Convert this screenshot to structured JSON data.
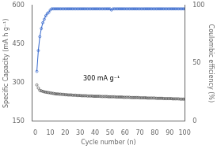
{
  "chart_data": {
    "type": "scatter",
    "xlabel": "Cycle number (n)",
    "ylabel": "Specific Capacity (mA h g⁻¹)",
    "y2label": "Coulombic efficiency (%)",
    "xlim": [
      -2,
      100
    ],
    "xticks": [
      0,
      10,
      20,
      30,
      40,
      50,
      60,
      70,
      80,
      90,
      100
    ],
    "ylim": [
      150,
      600
    ],
    "yticks": [
      150,
      300,
      450,
      600
    ],
    "y2lim": [
      0,
      100
    ],
    "y2ticks": [
      0,
      50,
      100
    ],
    "grid": false,
    "x": [
      1,
      2,
      3,
      4,
      5,
      6,
      7,
      8,
      9,
      10,
      11,
      12,
      13,
      14,
      15,
      16,
      17,
      18,
      19,
      20,
      21,
      22,
      23,
      24,
      25,
      26,
      27,
      28,
      29,
      30,
      31,
      32,
      33,
      34,
      35,
      36,
      37,
      38,
      39,
      40,
      41,
      42,
      43,
      44,
      45,
      46,
      47,
      48,
      49,
      50,
      51,
      52,
      53,
      54,
      55,
      56,
      57,
      58,
      59,
      60,
      61,
      62,
      63,
      64,
      65,
      66,
      67,
      68,
      69,
      70,
      71,
      72,
      73,
      74,
      75,
      76,
      77,
      78,
      79,
      80,
      81,
      82,
      83,
      84,
      85,
      86,
      87,
      88,
      89,
      90,
      91,
      92,
      93,
      94,
      95,
      96,
      97,
      98,
      99,
      100
    ],
    "series": [
      {
        "type": "scatter",
        "color": "#404040",
        "marker": "circle",
        "values": [
          291,
          279,
          270,
          268,
          266,
          264,
          263,
          262,
          261,
          260,
          259,
          258,
          257,
          256,
          256,
          255,
          255,
          254,
          254,
          253,
          253,
          252,
          252,
          252,
          251,
          251,
          251,
          250,
          250,
          250,
          249,
          249,
          249,
          249,
          248,
          248,
          248,
          248,
          247,
          247,
          247,
          247,
          247,
          246,
          246,
          246,
          246,
          246,
          245,
          245,
          245,
          245,
          245,
          244,
          244,
          244,
          244,
          244,
          243,
          243,
          243,
          243,
          243,
          242,
          242,
          242,
          242,
          242,
          242,
          241,
          241,
          241,
          241,
          241,
          240,
          240,
          240,
          240,
          240,
          240,
          239,
          239,
          239,
          239,
          239,
          238,
          238,
          238,
          238,
          238,
          238,
          237,
          237,
          237,
          237,
          237,
          236,
          236,
          236,
          236
        ]
      },
      {
        "type": "line",
        "axis": "y2",
        "color": "#3366cc",
        "marker": "circle",
        "line_style": "solid",
        "values": [
          43,
          61,
          73,
          80,
          85,
          88,
          91,
          93,
          94,
          96,
          97,
          97,
          97,
          97,
          97,
          97,
          97,
          97,
          97,
          97,
          97,
          97,
          97,
          97,
          97,
          97,
          97,
          97,
          97,
          97,
          97,
          97,
          97,
          97,
          97,
          97,
          97,
          97,
          97,
          97,
          97,
          97,
          97,
          97,
          97,
          97,
          97,
          97,
          97,
          97,
          96,
          97,
          97,
          97,
          97,
          97,
          97,
          97,
          97,
          97,
          97,
          97,
          97,
          97,
          97,
          97,
          97,
          97,
          97,
          97,
          97,
          97,
          97,
          97,
          97,
          97,
          97,
          97,
          97,
          97,
          97,
          97,
          97,
          97,
          97,
          97,
          97,
          97,
          97,
          97,
          97,
          97,
          97,
          97,
          97,
          97,
          97,
          97,
          97,
          97
        ]
      }
    ],
    "annotations": [
      {
        "text": "300 mA g⁻¹",
        "x": 32,
        "y": 310
      }
    ]
  }
}
